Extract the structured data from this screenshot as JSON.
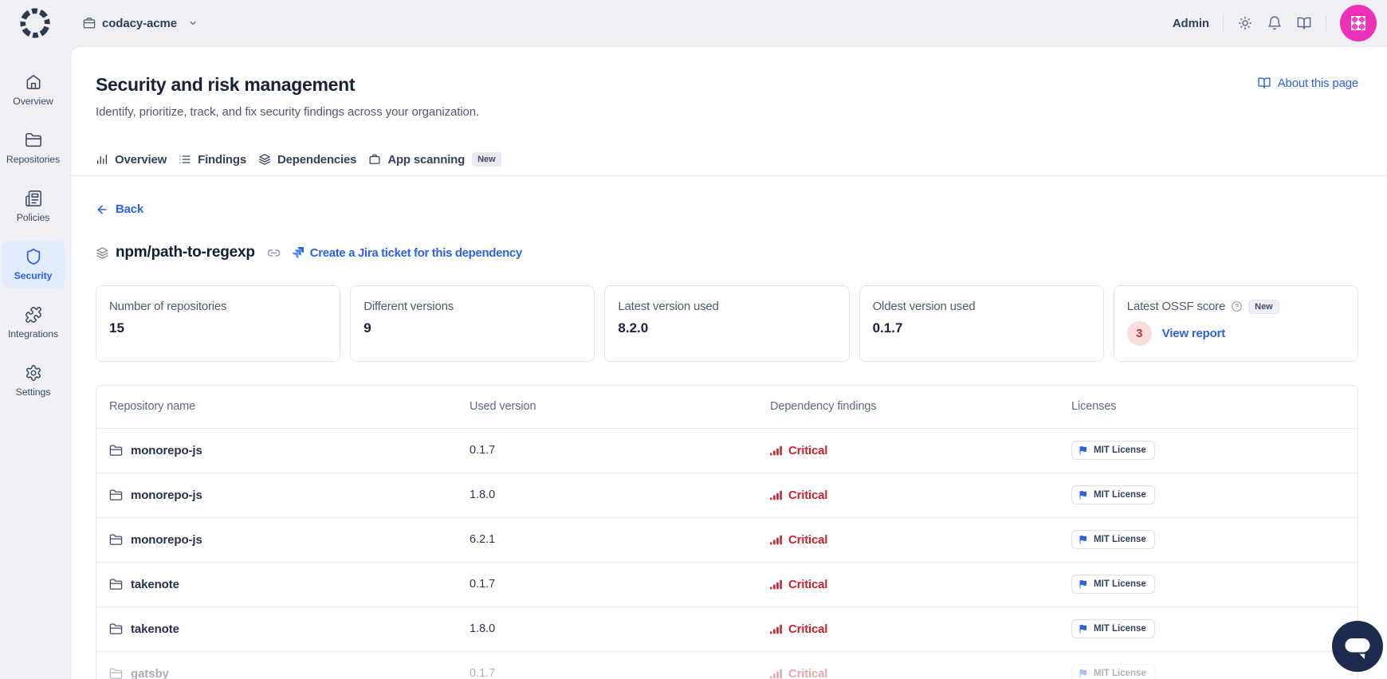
{
  "topbar": {
    "org_name": "codacy-acme",
    "user_label": "Admin"
  },
  "sidebar": {
    "items": [
      {
        "label": "Overview",
        "icon": "home-icon"
      },
      {
        "label": "Repositories",
        "icon": "folder-icon"
      },
      {
        "label": "Policies",
        "icon": "newspaper-icon"
      },
      {
        "label": "Security",
        "icon": "shield-icon",
        "active": true
      },
      {
        "label": "Integrations",
        "icon": "puzzle-icon"
      },
      {
        "label": "Settings",
        "icon": "gear-icon"
      }
    ]
  },
  "page": {
    "title": "Security and risk management",
    "subtitle": "Identify, prioritize, track, and fix security findings across your organization.",
    "about_link": "About this page",
    "back_label": "Back",
    "tabs": [
      {
        "label": "Overview",
        "icon": "bar-chart-icon"
      },
      {
        "label": "Findings",
        "icon": "list-icon"
      },
      {
        "label": "Dependencies",
        "icon": "layers-icon"
      },
      {
        "label": "App scanning",
        "icon": "briefcase-icon",
        "badge": "New"
      }
    ]
  },
  "dependency": {
    "name": "npm/path-to-regexp",
    "jira_link_label": "Create a Jira ticket for this dependency"
  },
  "stats": {
    "cards": [
      {
        "label": "Number of repositories",
        "value": "15"
      },
      {
        "label": "Different versions",
        "value": "9"
      },
      {
        "label": "Latest version used",
        "value": "8.2.0"
      },
      {
        "label": "Oldest version used",
        "value": "0.1.7"
      }
    ],
    "ossf": {
      "label": "Latest OSSF score",
      "badge": "New",
      "score": "3",
      "link_label": "View report"
    }
  },
  "table": {
    "columns": [
      "Repository name",
      "Used version",
      "Dependency findings",
      "Licenses"
    ],
    "rows": [
      {
        "repo": "monorepo-js",
        "version": "0.1.7",
        "severity": "Critical",
        "license": "MIT License"
      },
      {
        "repo": "monorepo-js",
        "version": "1.8.0",
        "severity": "Critical",
        "license": "MIT License"
      },
      {
        "repo": "monorepo-js",
        "version": "6.2.1",
        "severity": "Critical",
        "license": "MIT License"
      },
      {
        "repo": "takenote",
        "version": "0.1.7",
        "severity": "Critical",
        "license": "MIT License"
      },
      {
        "repo": "takenote",
        "version": "1.8.0",
        "severity": "Critical",
        "license": "MIT License"
      },
      {
        "repo": "gatsby",
        "version": "0.1.7",
        "severity": "Critical",
        "license": "MIT License",
        "faded": true
      }
    ]
  },
  "colors": {
    "accent_blue": "#2c62e9",
    "critical_red": "#c2262e",
    "avatar_pink": "#ee2fb8",
    "chat_navy": "#1d2c4e"
  }
}
